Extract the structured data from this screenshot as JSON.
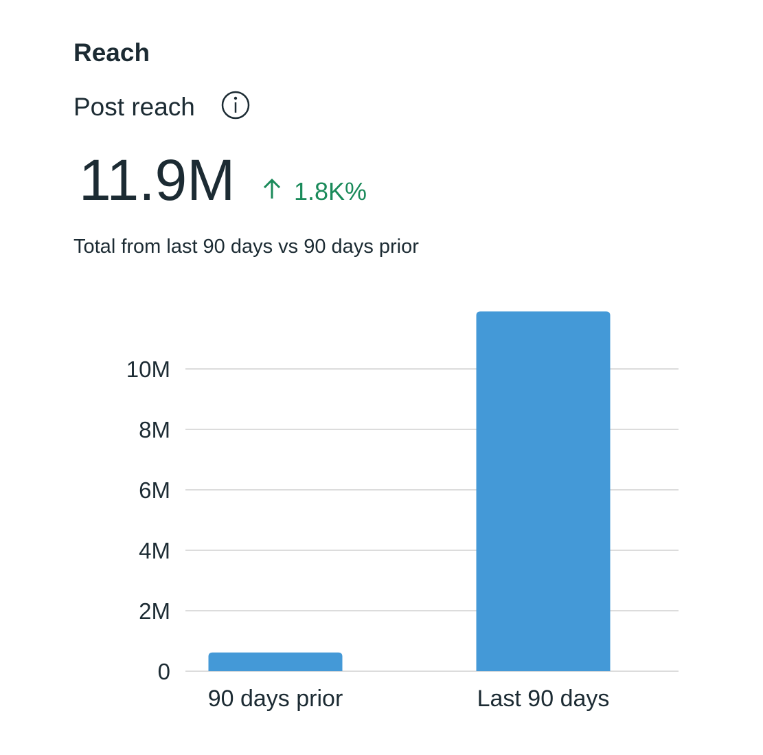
{
  "header": {
    "title": "Reach",
    "subtitle": "Post reach"
  },
  "summary": {
    "total": "11.9M",
    "change": "1.8K%",
    "caption": "Total from last 90 days vs 90 days prior"
  },
  "chart_data": {
    "type": "bar",
    "categories": [
      "90 days prior",
      "Last 90 days"
    ],
    "values": [
      620000,
      11900000
    ],
    "color": "#4499d7",
    "ylim": [
      0,
      12000000
    ],
    "yticks": [
      0,
      {
        "value": 2000000,
        "label": "2M"
      },
      {
        "value": 4000000,
        "label": "4M"
      },
      {
        "value": 6000000,
        "label": "6M"
      },
      {
        "value": 8000000,
        "label": "8M"
      },
      {
        "value": 10000000,
        "label": "10M"
      }
    ],
    "grid": true
  }
}
